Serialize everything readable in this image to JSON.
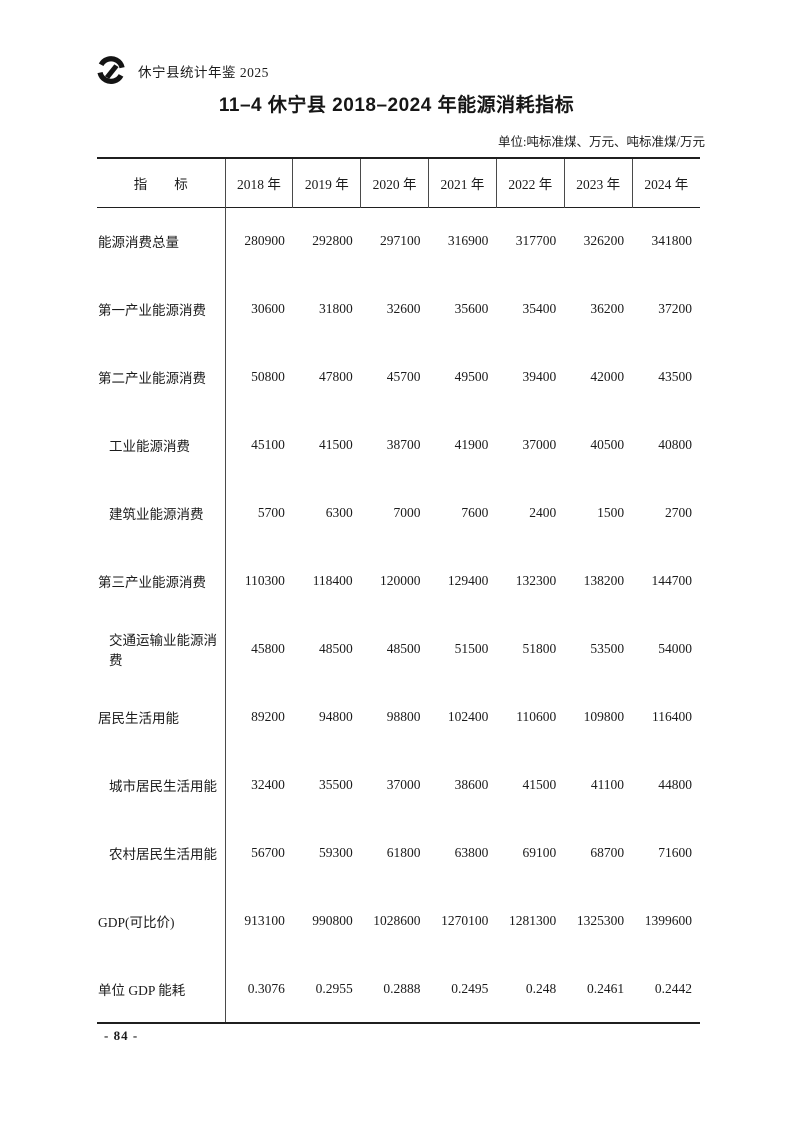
{
  "header": {
    "yearbook_title": "休宁县统计年鉴 2025",
    "logo_icon": "swirl-ring-logo",
    "logo_color": "#141414"
  },
  "title": "11–4 休宁县 2018–2024 年能源消耗指标",
  "unit_note": "单位:吨标准煤、万元、吨标准煤/万元",
  "footer": {
    "page_number": "- 84 -"
  },
  "table": {
    "stub_header": "指　　标",
    "columns": [
      "2018 年",
      "2019 年",
      "2020 年",
      "2021 年",
      "2022 年",
      "2023 年",
      "2024 年"
    ],
    "rows": [
      {
        "label": "能源消费总量",
        "indent": false,
        "values": [
          "280900",
          "292800",
          "297100",
          "316900",
          "317700",
          "326200",
          "341800"
        ]
      },
      {
        "label": "第一产业能源消费",
        "indent": false,
        "values": [
          "30600",
          "31800",
          "32600",
          "35600",
          "35400",
          "36200",
          "37200"
        ]
      },
      {
        "label": "第二产业能源消费",
        "indent": false,
        "values": [
          "50800",
          "47800",
          "45700",
          "49500",
          "39400",
          "42000",
          "43500"
        ]
      },
      {
        "label": "工业能源消费",
        "indent": true,
        "values": [
          "45100",
          "41500",
          "38700",
          "41900",
          "37000",
          "40500",
          "40800"
        ]
      },
      {
        "label": "建筑业能源消费",
        "indent": true,
        "values": [
          "5700",
          "6300",
          "7000",
          "7600",
          "2400",
          "1500",
          "2700"
        ]
      },
      {
        "label": "第三产业能源消费",
        "indent": false,
        "values": [
          "110300",
          "118400",
          "120000",
          "129400",
          "132300",
          "138200",
          "144700"
        ]
      },
      {
        "label": "交通运输业能源消费",
        "indent": true,
        "values": [
          "45800",
          "48500",
          "48500",
          "51500",
          "51800",
          "53500",
          "54000"
        ]
      },
      {
        "label": "居民生活用能",
        "indent": false,
        "values": [
          "89200",
          "94800",
          "98800",
          "102400",
          "110600",
          "109800",
          "116400"
        ]
      },
      {
        "label": "城市居民生活用能",
        "indent": true,
        "values": [
          "32400",
          "35500",
          "37000",
          "38600",
          "41500",
          "41100",
          "44800"
        ]
      },
      {
        "label": "农村居民生活用能",
        "indent": true,
        "values": [
          "56700",
          "59300",
          "61800",
          "63800",
          "69100",
          "68700",
          "71600"
        ]
      },
      {
        "label": "GDP(可比价)",
        "indent": false,
        "values": [
          "913100",
          "990800",
          "1028600",
          "1270100",
          "1281300",
          "1325300",
          "1399600"
        ]
      },
      {
        "label": "单位 GDP 能耗",
        "indent": false,
        "values": [
          "0.3076",
          "0.2955",
          "0.2888",
          "0.2495",
          "0.248",
          "0.2461",
          "0.2442"
        ]
      }
    ]
  }
}
